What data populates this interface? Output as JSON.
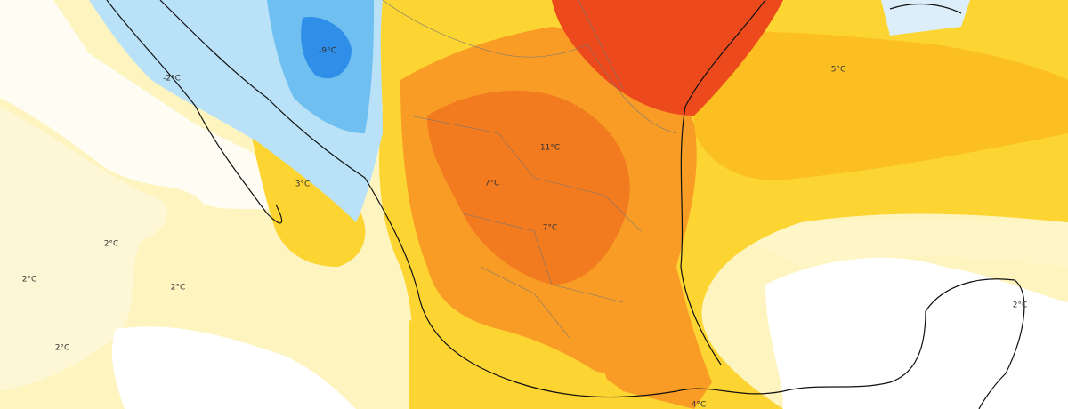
{
  "map": {
    "labels": [
      "-9°C",
      "-2°C",
      "3°C",
      "2°C",
      "2°C",
      "2°C",
      "2°C",
      "11°C",
      "7°C",
      "7°C",
      "5°C",
      "2°C",
      "4°C"
    ]
  }
}
